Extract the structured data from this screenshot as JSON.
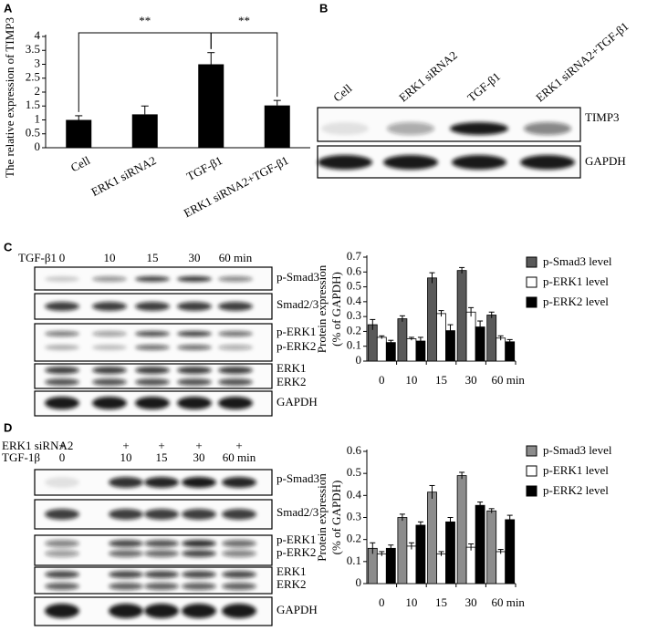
{
  "panel_labels": [
    "A",
    "B",
    "C",
    "D"
  ],
  "chart_data": [
    {
      "type": "bar",
      "ylabel": "The relative expression of TIMP3",
      "categories": [
        "Cell",
        "ERK1 siRNA2",
        "TGF-β1",
        "ERK1 siRNA2+TGF-β1"
      ],
      "values": [
        1,
        1.2,
        3,
        1.52
      ],
      "errors": [
        0.15,
        0.3,
        0.42,
        0.18
      ],
      "color": "#000000",
      "ylim": [
        0,
        4
      ],
      "yticks": [
        0,
        0.5,
        1,
        1.5,
        2,
        2.5,
        3,
        3.5,
        4
      ],
      "annotations": [
        "**",
        "**"
      ]
    },
    {
      "type": "bar",
      "ylabel": [
        "Protein expression",
        "(% of GAPDH)"
      ],
      "categories": [
        "0",
        "10",
        "15",
        "30",
        "60 min"
      ],
      "ylim": [
        0,
        0.7
      ],
      "yticks": [
        0,
        0.1,
        0.2,
        0.3,
        0.4,
        0.5,
        0.6,
        0.7
      ],
      "series": [
        {
          "name": "p-Smad3 level",
          "color": "#595959",
          "values": [
            0.245,
            0.285,
            0.56,
            0.61,
            0.31
          ],
          "errors": [
            0.035,
            0.02,
            0.035,
            0.02,
            0.02
          ]
        },
        {
          "name": "p-ERK1 level",
          "color": "#ffffff",
          "values": [
            0.16,
            0.15,
            0.32,
            0.33,
            0.155
          ],
          "errors": [
            0.01,
            0.01,
            0.02,
            0.03,
            0.015
          ]
        },
        {
          "name": "p-ERK2 level",
          "color": "#000000",
          "values": [
            0.125,
            0.135,
            0.205,
            0.23,
            0.13
          ],
          "errors": [
            0.015,
            0.025,
            0.04,
            0.04,
            0.015
          ]
        }
      ]
    },
    {
      "type": "bar",
      "ylabel": [
        "Protein expression",
        "(% of GAPDH)"
      ],
      "categories": [
        "0",
        "10",
        "15",
        "30",
        "60 min"
      ],
      "ylim": [
        0,
        0.6
      ],
      "yticks": [
        0,
        0.1,
        0.2,
        0.3,
        0.4,
        0.5,
        0.6
      ],
      "series": [
        {
          "name": "p-Smad3 level",
          "color": "#8c8c8c",
          "values": [
            0.16,
            0.3,
            0.415,
            0.49,
            0.33
          ],
          "errors": [
            0.025,
            0.015,
            0.03,
            0.015,
            0.01
          ]
        },
        {
          "name": "p-ERK1 level",
          "color": "#ffffff",
          "values": [
            0.135,
            0.17,
            0.135,
            0.165,
            0.145
          ],
          "errors": [
            0.01,
            0.015,
            0.01,
            0.015,
            0.01
          ]
        },
        {
          "name": "p-ERK2 level",
          "color": "#000000",
          "values": [
            0.16,
            0.265,
            0.28,
            0.355,
            0.29
          ],
          "errors": [
            0.015,
            0.015,
            0.02,
            0.015,
            0.02
          ]
        }
      ]
    }
  ],
  "blot_b": {
    "lanes": [
      "Cell",
      "ERK1 siRNA2",
      "TGF-β1",
      "ERK1 siRNA2+TGF-β1"
    ],
    "rows": [
      "TIMP3",
      "GAPDH"
    ]
  },
  "blot_c": {
    "treatment": "TGF-β1",
    "lanes": [
      "0",
      "10",
      "15",
      "30",
      "60 min"
    ],
    "rows": [
      "p-Smad3",
      "Smad2/3",
      "p-ERK1",
      "p-ERK2",
      "ERK1",
      "ERK2",
      "GAPDH"
    ]
  },
  "blot_d": {
    "headers": [
      "ERK1 siRNA2",
      "TGF-1β"
    ],
    "plus": [
      "+",
      "+",
      "+",
      "+",
      "+"
    ],
    "lanes": [
      "0",
      "10",
      "15",
      "30",
      "60 min"
    ],
    "rows": [
      "p-Smad3",
      "Smad2/3",
      "p-ERK1",
      "p-ERK2",
      "ERK1",
      "ERK2",
      "GAPDH"
    ]
  }
}
